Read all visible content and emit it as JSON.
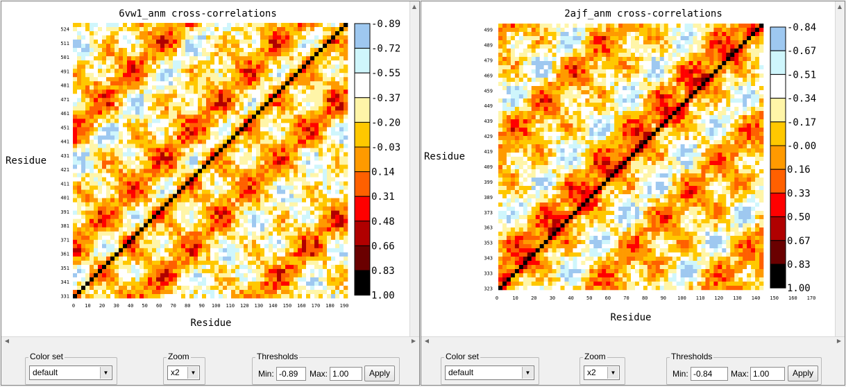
{
  "colorbar_colors": [
    "#9ec8f0",
    "#cff6fc",
    "#ffffff",
    "#fff5a8",
    "#ffc800",
    "#ff9a00",
    "#ff6000",
    "#ff0000",
    "#b00000",
    "#6a0000",
    "#000000"
  ],
  "panels": [
    {
      "id": "left",
      "title": "6vw1_anm cross-correlations",
      "xlabel": "Residue",
      "ylabel": "Residue",
      "x_ticks": [
        "0",
        "10",
        "20",
        "30",
        "40",
        "50",
        "60",
        "70",
        "80",
        "90",
        "100",
        "110",
        "120",
        "130",
        "140",
        "150",
        "160",
        "170",
        "180",
        "190"
      ],
      "y_ticks": [
        "524",
        "511",
        "501",
        "491",
        "481",
        "471",
        "461",
        "451",
        "441",
        "431",
        "421",
        "411",
        "401",
        "391",
        "381",
        "371",
        "361",
        "351",
        "341",
        "331"
      ],
      "colorbar_labels": [
        "-0.89",
        "-0.72",
        "-0.55",
        "-0.37",
        "-0.20",
        "-0.03",
        "0.14",
        "0.31",
        "0.48",
        "0.66",
        "0.83",
        "1.00"
      ],
      "controls": {
        "color_set_label": "Color set",
        "color_set_value": "default",
        "zoom_label": "Zoom",
        "zoom_value": "x2",
        "thresholds_label": "Thresholds",
        "min_label": "Min:",
        "min_value": "-0.89",
        "max_label": "Max:",
        "max_value": "1.00",
        "apply_label": "Apply"
      }
    },
    {
      "id": "right",
      "title": "2ajf_anm cross-correlations",
      "xlabel": "Residue",
      "ylabel": "Residue",
      "x_ticks": [
        "0",
        "10",
        "20",
        "30",
        "40",
        "50",
        "60",
        "70",
        "80",
        "90",
        "100",
        "110",
        "120",
        "130",
        "140",
        "150",
        "160",
        "170"
      ],
      "y_ticks": [
        "499",
        "489",
        "479",
        "469",
        "459",
        "449",
        "439",
        "429",
        "419",
        "409",
        "399",
        "389",
        "373",
        "363",
        "353",
        "343",
        "333",
        "323"
      ],
      "colorbar_labels": [
        "-0.84",
        "-0.67",
        "-0.51",
        "-0.34",
        "-0.17",
        "-0.00",
        "0.16",
        "0.33",
        "0.50",
        "0.67",
        "0.83",
        "1.00"
      ],
      "controls": {
        "color_set_label": "Color set",
        "color_set_value": "default",
        "zoom_label": "Zoom",
        "zoom_value": "x2",
        "thresholds_label": "Thresholds",
        "min_label": "Min:",
        "min_value": "-0.84",
        "max_label": "Max:",
        "max_value": "1.00",
        "apply_label": "Apply"
      }
    }
  ]
}
